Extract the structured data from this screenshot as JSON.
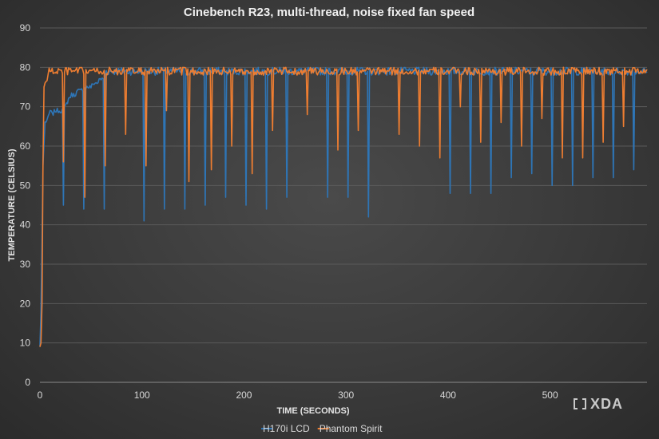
{
  "chart_data": {
    "type": "line",
    "title": "Cinebench R23, multi-thread, noise fixed fan speed",
    "xlabel": "TIME (SECONDS)",
    "ylabel": "TEMPERATURE (CELSIUS)",
    "xlim": [
      0,
      595
    ],
    "ylim": [
      0,
      90
    ],
    "xticks": [
      0,
      100,
      200,
      300,
      400,
      500
    ],
    "yticks": [
      0,
      10,
      20,
      30,
      40,
      50,
      60,
      70,
      80,
      90
    ],
    "grid": "horizontal",
    "legend_position": "bottom",
    "series": [
      {
        "name": "H170i LCD",
        "color": "#2e75b6",
        "baseline": [
          [
            0,
            9
          ],
          [
            1,
            18
          ],
          [
            3,
            55
          ],
          [
            5,
            66
          ],
          [
            8,
            67
          ],
          [
            10,
            69
          ],
          [
            12,
            68
          ],
          [
            15,
            69
          ],
          [
            18,
            69
          ],
          [
            21,
            69
          ],
          [
            25,
            70
          ],
          [
            28,
            72
          ],
          [
            31,
            73
          ],
          [
            34,
            73
          ],
          [
            37,
            74
          ],
          [
            40,
            74
          ],
          [
            44,
            75
          ],
          [
            47,
            75
          ],
          [
            50,
            75
          ],
          [
            53,
            76
          ],
          [
            56,
            76
          ],
          [
            59,
            77
          ],
          [
            62,
            77
          ],
          [
            65,
            79
          ],
          [
            70,
            79
          ],
          [
            595,
            79
          ]
        ],
        "dips": [
          [
            23,
            45
          ],
          [
            43,
            44
          ],
          [
            63,
            44
          ],
          [
            102,
            41
          ],
          [
            122,
            44
          ],
          [
            142,
            44
          ],
          [
            162,
            45
          ],
          [
            182,
            47
          ],
          [
            202,
            45
          ],
          [
            222,
            44
          ],
          [
            242,
            47
          ],
          [
            282,
            47
          ],
          [
            302,
            47
          ],
          [
            322,
            42
          ],
          [
            402,
            48
          ],
          [
            422,
            48
          ],
          [
            442,
            48
          ],
          [
            462,
            52
          ],
          [
            482,
            53
          ],
          [
            502,
            50
          ],
          [
            522,
            50
          ],
          [
            542,
            52
          ],
          [
            562,
            52
          ],
          [
            582,
            54
          ]
        ],
        "fluct": [
          78,
          80
        ]
      },
      {
        "name": "Phantom Spirit",
        "color": "#ed7d31",
        "baseline": [
          [
            0,
            9
          ],
          [
            1,
            10
          ],
          [
            2,
            20
          ],
          [
            3,
            55
          ],
          [
            4,
            75
          ],
          [
            5,
            76
          ],
          [
            7,
            77
          ],
          [
            9,
            79
          ],
          [
            20,
            79
          ],
          [
            595,
            79
          ]
        ],
        "dips": [
          [
            23,
            56
          ],
          [
            44,
            47
          ],
          [
            64,
            55
          ],
          [
            84,
            63
          ],
          [
            104,
            55
          ],
          [
            124,
            69
          ],
          [
            146,
            51
          ],
          [
            168,
            54
          ],
          [
            188,
            60
          ],
          [
            208,
            53
          ],
          [
            228,
            64
          ],
          [
            262,
            68
          ],
          [
            292,
            59
          ],
          [
            312,
            64
          ],
          [
            352,
            63
          ],
          [
            372,
            60
          ],
          [
            392,
            57
          ],
          [
            412,
            70
          ],
          [
            432,
            61
          ],
          [
            452,
            66
          ],
          [
            472,
            60
          ],
          [
            492,
            67
          ],
          [
            512,
            57
          ],
          [
            532,
            57
          ],
          [
            552,
            61
          ],
          [
            572,
            65
          ]
        ],
        "fluct": [
          78,
          80
        ]
      }
    ]
  },
  "watermark": "XDA"
}
